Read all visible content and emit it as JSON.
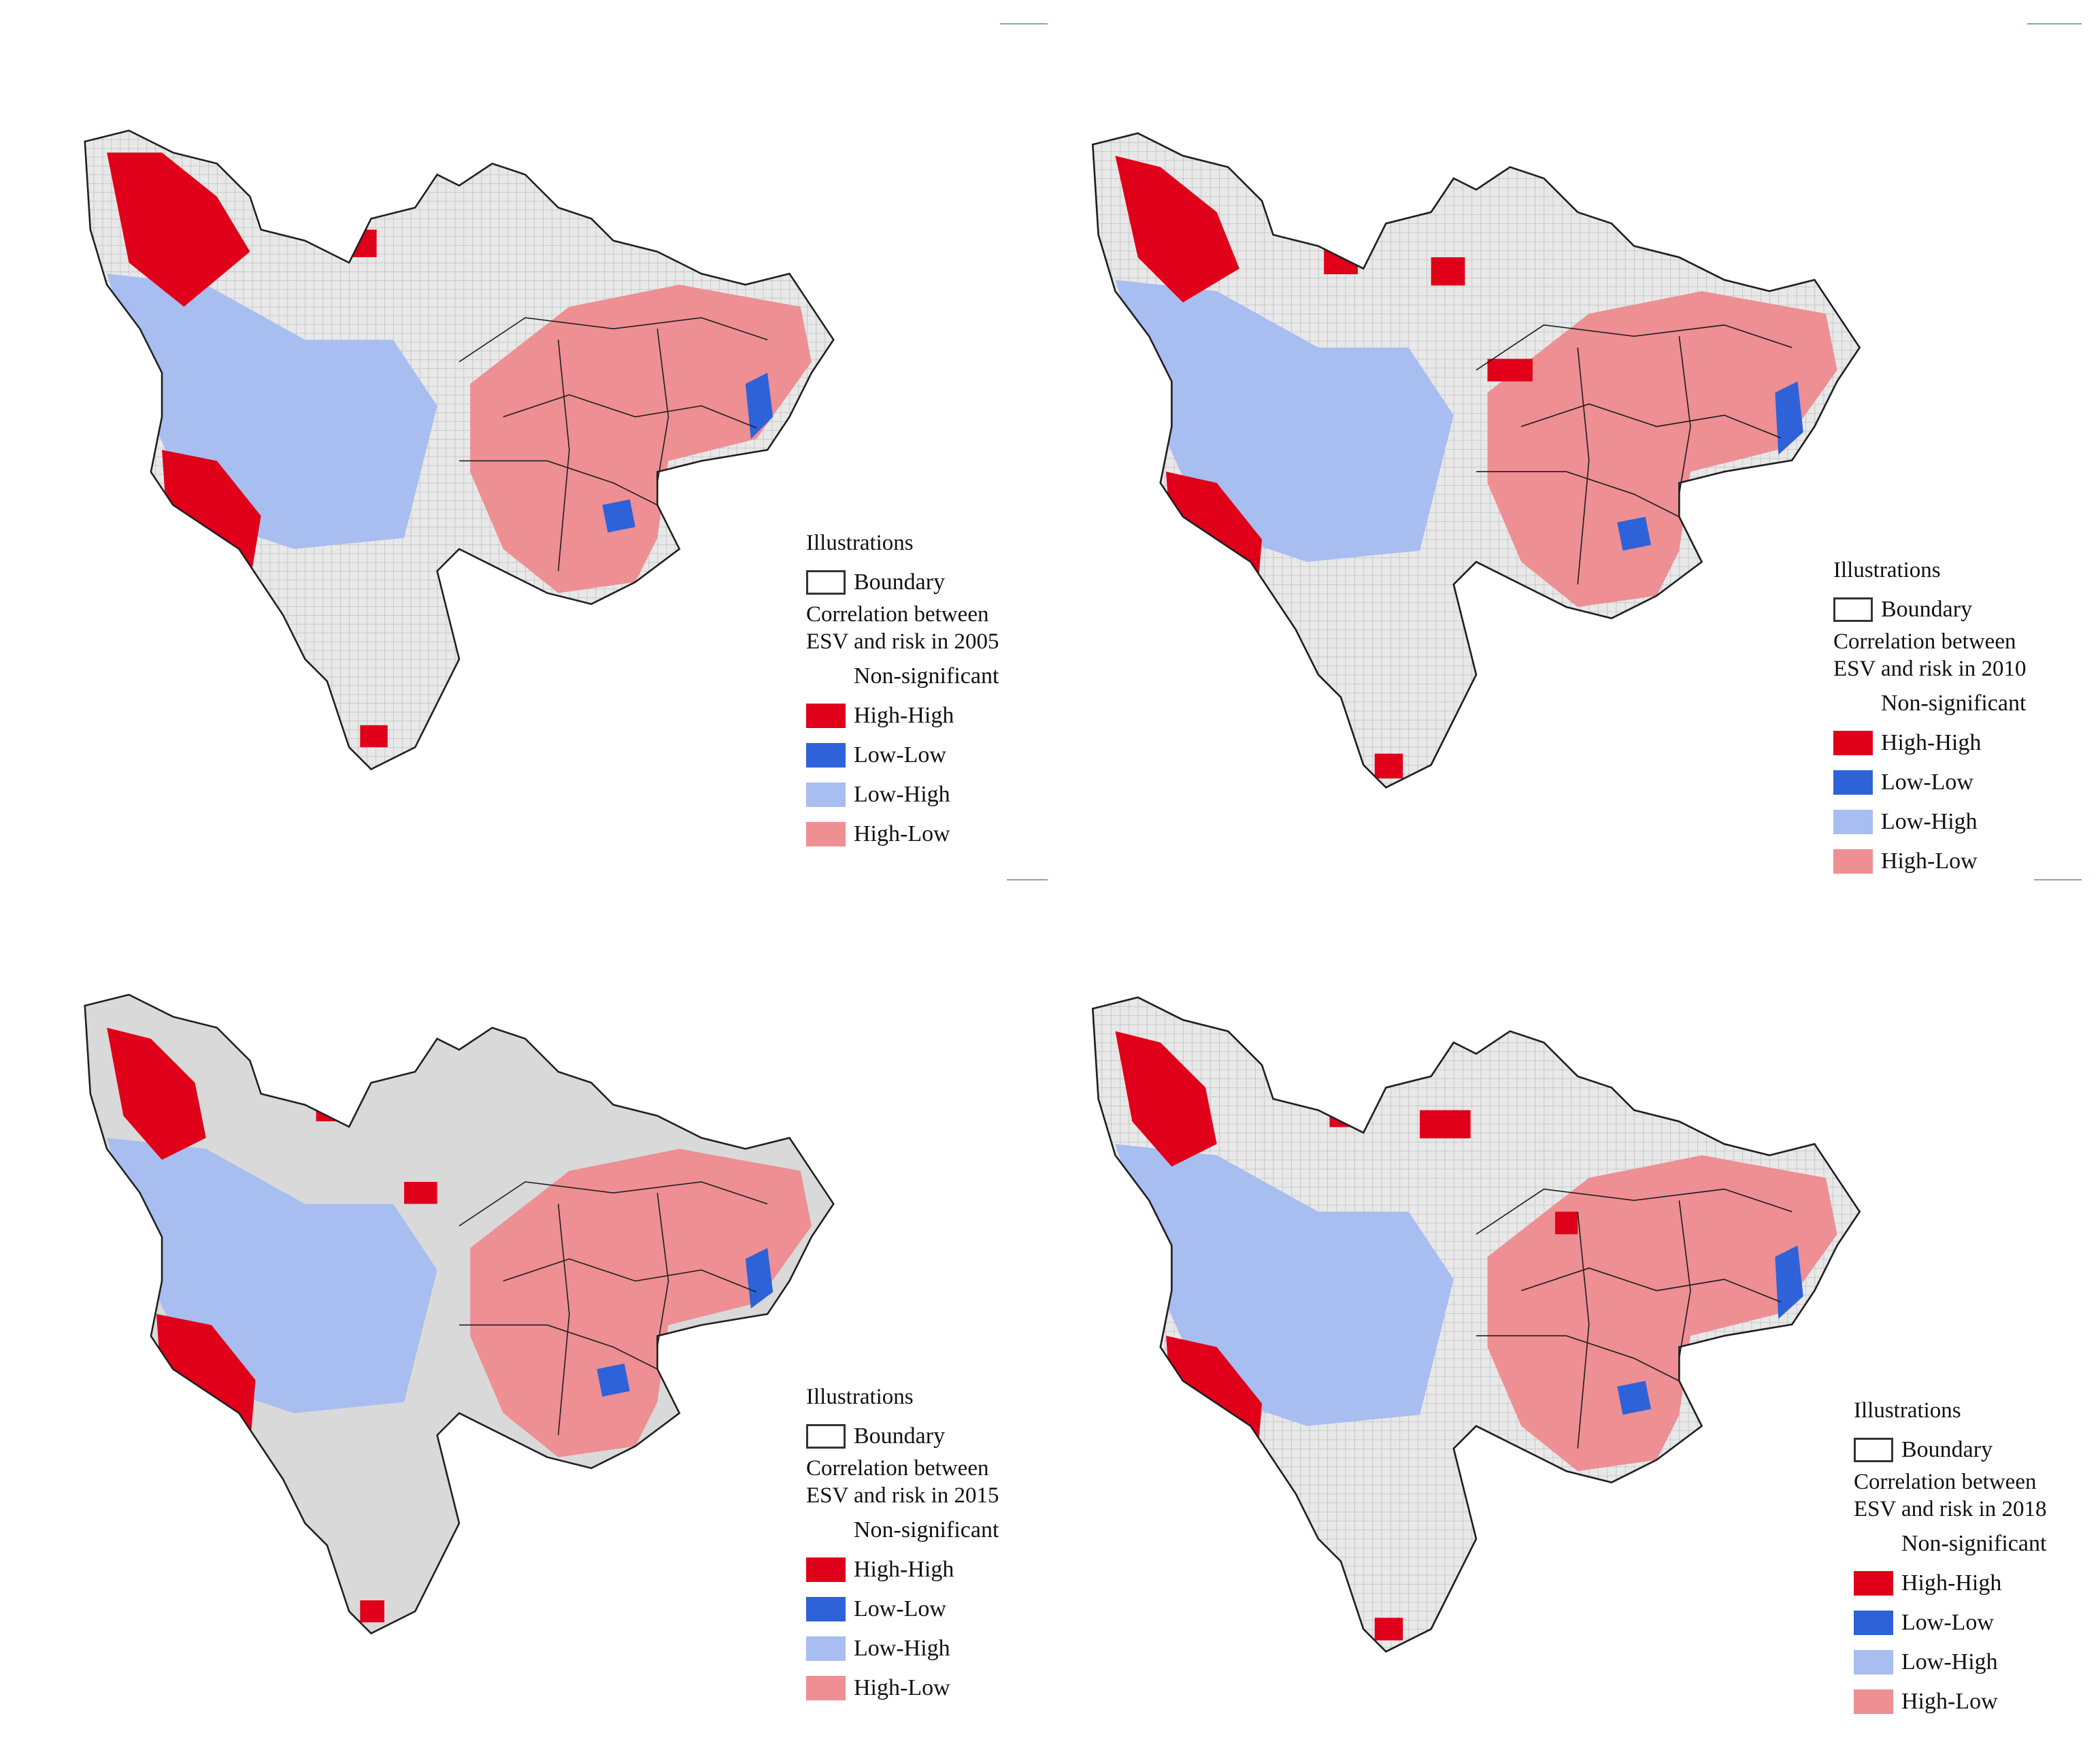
{
  "colors": {
    "non_significant": "#e8e8e8",
    "grid_line": "#b8b8b8",
    "boundary": "#202020",
    "high_high": "#e00019",
    "low_low": "#2e62d8",
    "low_high": "#a8bdf0",
    "high_low": "#ed8f93"
  },
  "legend": {
    "title": "Illustrations",
    "boundary": "Boundary",
    "items": [
      {
        "key": "non_significant",
        "label": "Non-significant"
      },
      {
        "key": "high_high",
        "label": "High-High"
      },
      {
        "key": "low_low",
        "label": "Low-Low"
      },
      {
        "key": "low_high",
        "label": "Low-High"
      },
      {
        "key": "high_low",
        "label": "High-Low"
      }
    ]
  },
  "panels": [
    {
      "year": "2005",
      "corr_line1": "Correlation between",
      "corr_line2": "ESV and risk in 2005"
    },
    {
      "year": "2010",
      "corr_line1": "Correlation between",
      "corr_line2": "ESV and risk in 2010"
    },
    {
      "year": "2015",
      "corr_line1": "Correlation between",
      "corr_line2": "ESV and risk in 2015"
    },
    {
      "year": "2018",
      "corr_line1": "Correlation between",
      "corr_line2": "ESV and risk in 2018"
    }
  ],
  "icons": {
    "boundary_swatch": "rectangle-outline",
    "map_outline": "sichuan-province-outline"
  }
}
